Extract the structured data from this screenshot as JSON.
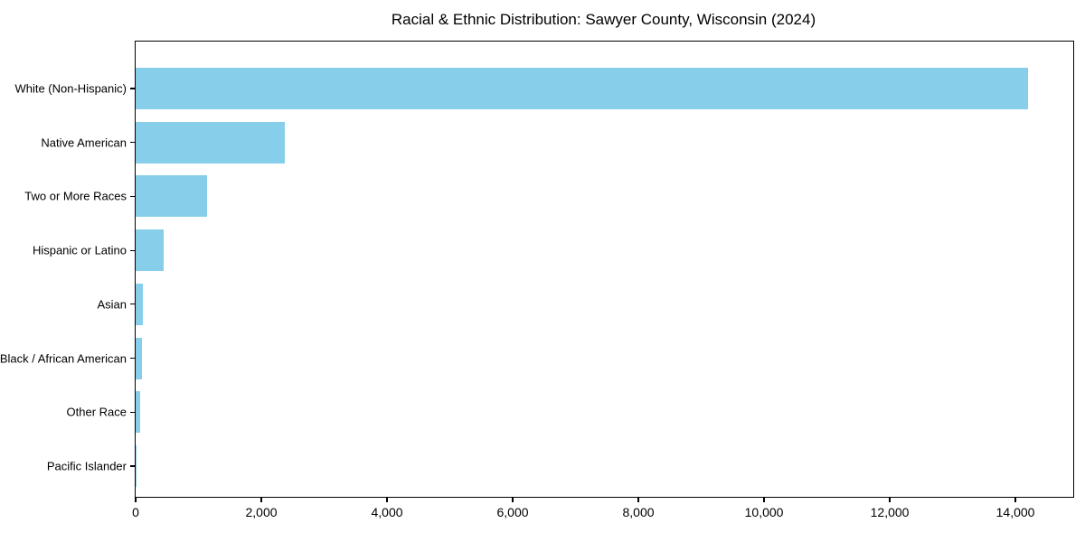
{
  "chart_data": {
    "type": "bar",
    "orientation": "horizontal",
    "title": "Racial & Ethnic Distribution: Sawyer County, Wisconsin (2024)",
    "categories": [
      "White (Non-Hispanic)",
      "Native American",
      "Two or More Races",
      "Hispanic or Latino",
      "Asian",
      "Black / African American",
      "Other Race",
      "Pacific Islander"
    ],
    "values": [
      14200,
      2380,
      1140,
      450,
      115,
      100,
      75,
      10
    ],
    "bar_color": "#87CEEB",
    "xlabel": "",
    "ylabel": "",
    "xlim": [
      0,
      14920
    ],
    "x_ticks": [
      0,
      2000,
      4000,
      6000,
      8000,
      10000,
      12000,
      14000
    ],
    "x_tick_labels": [
      "0",
      "2,000",
      "4,000",
      "6,000",
      "8,000",
      "10,000",
      "12,000",
      "14,000"
    ],
    "grid": false,
    "legend": null,
    "frame_color": "#000000",
    "background_color": "#ffffff"
  }
}
